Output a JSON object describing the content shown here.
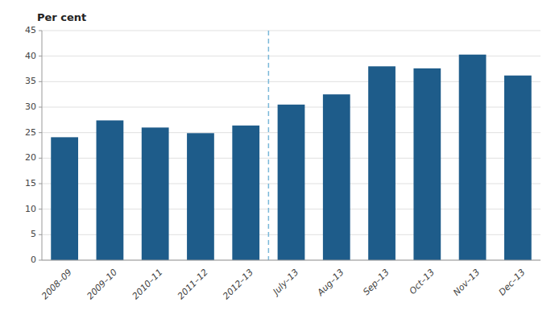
{
  "chart_data": {
    "type": "bar",
    "y_label": "Per cent",
    "categories": [
      "2008–09",
      "2009–10",
      "2010–11",
      "2011–12",
      "2012–13",
      "July–13",
      "Aug–13",
      "Sep–13",
      "Oct–13",
      "Nov–13",
      "Dec–13"
    ],
    "values": [
      24.1,
      27.4,
      26.0,
      24.9,
      26.4,
      30.5,
      32.5,
      38.0,
      37.6,
      40.3,
      36.2
    ],
    "color": "#1e5c8a",
    "ylim": [
      0,
      45
    ],
    "yticks": [
      0,
      5,
      10,
      15,
      20,
      25,
      30,
      35,
      40,
      45
    ],
    "grid": true,
    "annotations": [
      {
        "type": "vline",
        "between": [
          "2012–13",
          "July–13"
        ],
        "color": "#7ab8d9",
        "line_style": "dashed"
      }
    ]
  }
}
